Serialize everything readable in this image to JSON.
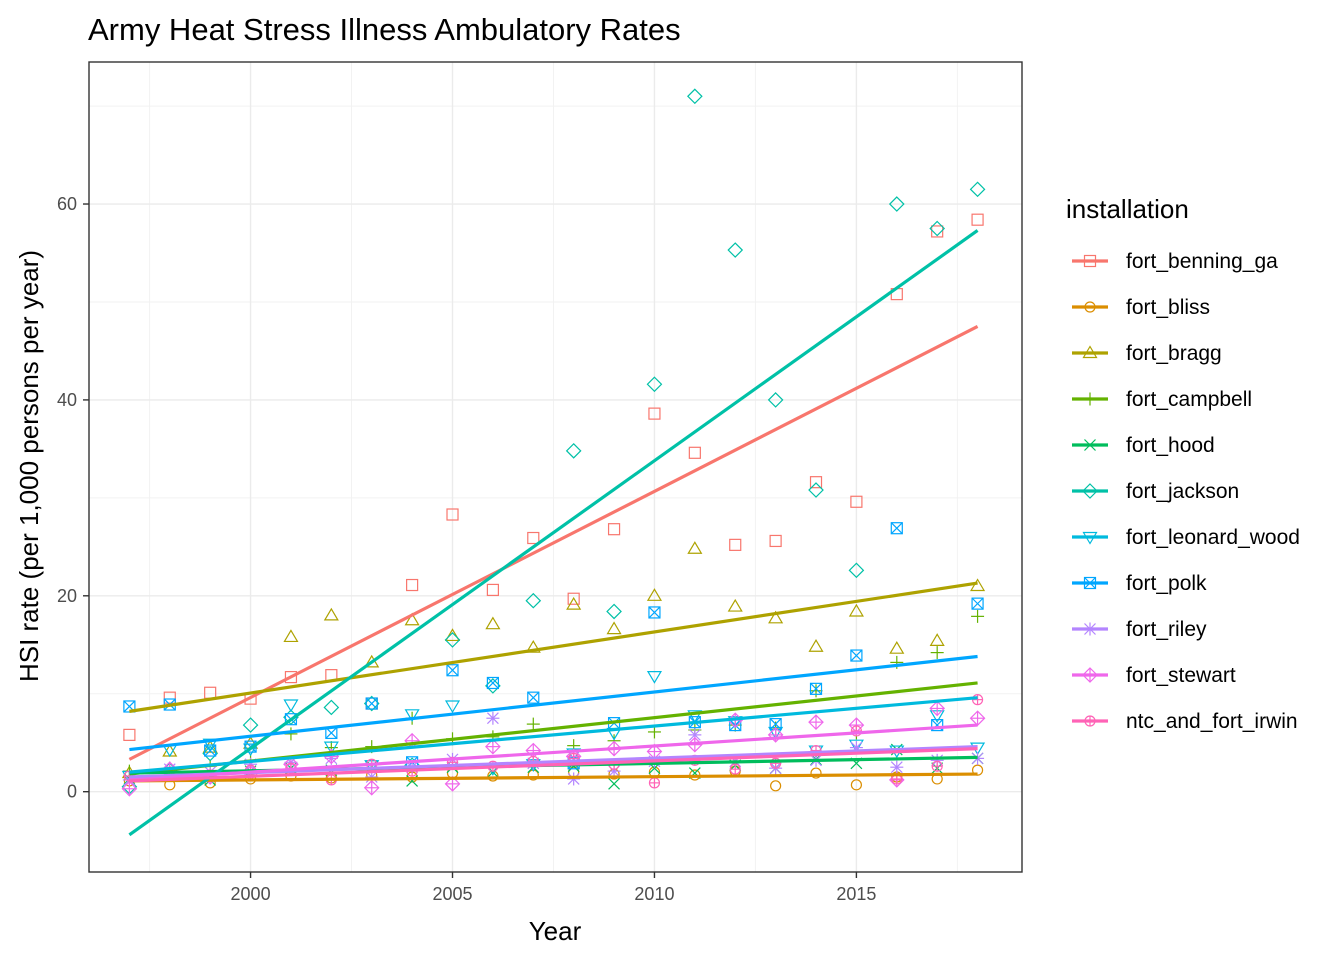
{
  "chart_data": {
    "type": "scatter",
    "title": "Army Heat Stress Illness Ambulatory Rates",
    "xlabel": "Year",
    "ylabel": "HSI rate (per 1,000 persons per year)",
    "xlim": [
      1996.0,
      2019.1
    ],
    "ylim": [
      -8.2,
      74.5
    ],
    "x_ticks": [
      2000,
      2005,
      2010,
      2015
    ],
    "y_ticks": [
      0,
      20,
      40,
      60
    ],
    "grid": true,
    "legend_title": "installation",
    "legend_position": "right",
    "trend_lines": "linear fit per series",
    "x": [
      1997,
      1998,
      1999,
      2000,
      2001,
      2002,
      2003,
      2004,
      2005,
      2006,
      2007,
      2008,
      2009,
      2010,
      2011,
      2012,
      2013,
      2014,
      2015,
      2016,
      2017,
      2018
    ],
    "series": [
      {
        "name": "fort_benning_ga",
        "color": "#F8766D",
        "shape": "square",
        "values": [
          5.8,
          9.6,
          10.1,
          9.5,
          11.7,
          11.9,
          9.0,
          21.1,
          28.3,
          20.6,
          25.9,
          19.7,
          26.8,
          38.6,
          34.6,
          25.2,
          25.6,
          31.6,
          29.6,
          50.8,
          57.2,
          58.4
        ],
        "fit": [
          3.3,
          47.5
        ]
      },
      {
        "name": "fort_bliss",
        "color": "#DB8E00",
        "shape": "circle",
        "values": [
          1.1,
          0.7,
          0.9,
          1.3,
          1.6,
          1.4,
          1.7,
          1.5,
          1.9,
          1.6,
          1.7,
          2.0,
          1.8,
          2.0,
          1.7,
          2.1,
          0.6,
          1.9,
          0.7,
          1.5,
          1.3,
          2.2
        ],
        "fit": [
          1.1,
          1.8
        ]
      },
      {
        "name": "fort_bragg",
        "color": "#AEA200",
        "shape": "triangle",
        "values": [
          1.9,
          4.1,
          4.5,
          4.9,
          15.8,
          18.0,
          13.2,
          17.5,
          15.9,
          17.1,
          14.7,
          19.1,
          16.6,
          20.0,
          24.8,
          18.9,
          17.7,
          14.8,
          18.4,
          14.6,
          15.4,
          21.0
        ],
        "fit": [
          8.2,
          21.3
        ]
      },
      {
        "name": "fort_campbell",
        "color": "#64B200",
        "shape": "plus",
        "values": [
          2.1,
          2.4,
          2.6,
          3.2,
          5.9,
          4.5,
          4.6,
          7.5,
          5.4,
          5.6,
          6.9,
          4.7,
          5.2,
          6.1,
          6.3,
          6.8,
          6.5,
          10.3,
          6.0,
          13.2,
          14.2,
          17.9
        ],
        "fit": [
          1.8,
          11.1
        ]
      },
      {
        "name": "fort_hood",
        "color": "#00BD5C",
        "shape": "cross",
        "values": [
          1.3,
          1.6,
          1.2,
          2.1,
          2.4,
          2.2,
          2.6,
          1.1,
          2.5,
          2.0,
          2.5,
          2.6,
          0.8,
          2.4,
          1.9,
          2.7,
          2.4,
          3.3,
          2.9,
          4.3,
          2.4,
          3.4
        ],
        "fit": [
          1.9,
          3.5
        ]
      },
      {
        "name": "fort_jackson",
        "color": "#00C1A7",
        "shape": "diamond",
        "values": [
          0.5,
          2.2,
          3.9,
          6.8,
          7.6,
          8.6,
          9.0,
          2.7,
          15.5,
          10.8,
          19.5,
          34.8,
          18.4,
          41.6,
          71.0,
          55.3,
          40.0,
          30.8,
          22.6,
          60.0,
          57.5,
          61.5
        ],
        "fit": [
          -4.4,
          57.3
        ]
      },
      {
        "name": "fort_leonard_wood",
        "color": "#00BADE",
        "shape": "triangle-down",
        "values": [
          1.6,
          4.3,
          4.9,
          4.4,
          8.9,
          4.6,
          2.7,
          7.9,
          8.8,
          2.4,
          2.8,
          3.9,
          6.0,
          11.8,
          7.8,
          7.2,
          6.1,
          4.2,
          4.8,
          4.2,
          7.8,
          4.5
        ],
        "fit": [
          2.0,
          9.6
        ]
      },
      {
        "name": "fort_polk",
        "color": "#00A6FF",
        "shape": "square-cross",
        "values": [
          8.7,
          8.9,
          4.2,
          4.6,
          7.4,
          6.0,
          9.0,
          3.0,
          12.4,
          11.1,
          9.6,
          2.9,
          7.0,
          18.3,
          7.1,
          6.8,
          6.9,
          10.5,
          13.9,
          26.9,
          6.8,
          19.2
        ],
        "fit": [
          4.3,
          13.8
        ]
      },
      {
        "name": "fort_riley",
        "color": "#B385FF",
        "shape": "asterisk",
        "values": [
          1.2,
          2.3,
          2.0,
          2.8,
          3.0,
          3.4,
          1.5,
          2.5,
          3.3,
          7.5,
          2.9,
          1.3,
          2.1,
          3.1,
          5.8,
          3.1,
          2.4,
          3.2,
          4.5,
          2.5,
          3.2,
          3.4
        ],
        "fit": [
          1.5,
          4.6
        ]
      },
      {
        "name": "fort_stewart",
        "color": "#EF67EB",
        "shape": "diamond-plus",
        "values": [
          0.3,
          2.3,
          1.5,
          1.9,
          2.8,
          3.6,
          0.4,
          5.2,
          0.8,
          4.6,
          4.2,
          3.6,
          4.4,
          4.1,
          4.8,
          7.3,
          5.8,
          7.1,
          6.8,
          1.2,
          8.5,
          7.5
        ],
        "fit": [
          1.2,
          6.8
        ]
      },
      {
        "name": "ntc_and_fort_irwin",
        "color": "#FF63B6",
        "shape": "circle-plus",
        "values": [
          1.6,
          2.0,
          1.7,
          2.2,
          2.4,
          1.2,
          2.8,
          2.1,
          3.0,
          2.6,
          3.1,
          3.4,
          2.8,
          0.9,
          3.2,
          2.3,
          2.9,
          4.2,
          6.2,
          1.3,
          2.6,
          9.4
        ],
        "fit": [
          1.1,
          4.4
        ]
      }
    ]
  }
}
